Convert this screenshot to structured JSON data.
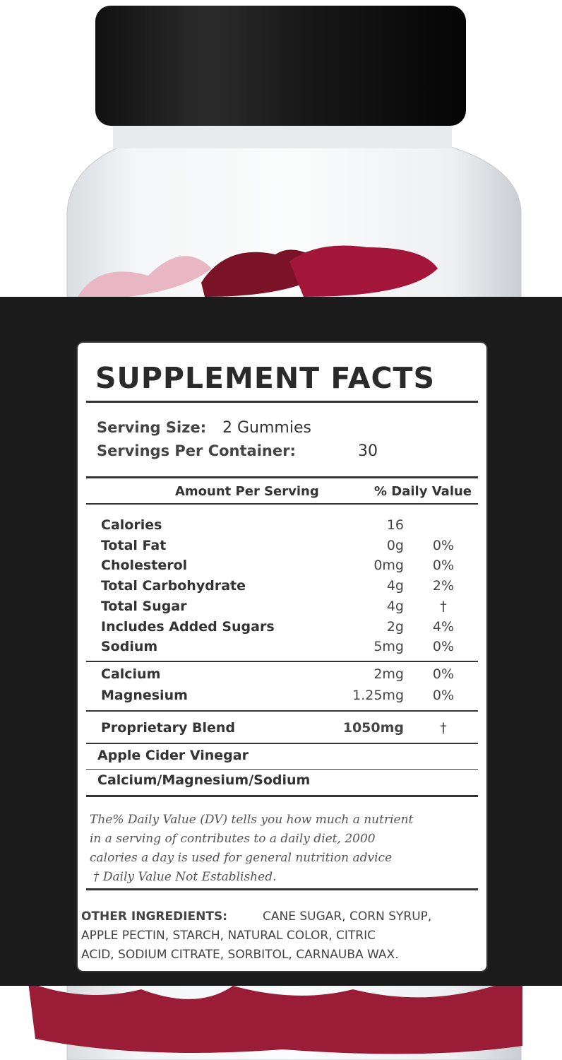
{
  "label": {
    "title": "SUPPLEMENT FACTS",
    "serving_size_label": "Serving Size:",
    "serving_size": "2 Gummies",
    "servings_label": "Servings Per Container:",
    "servings": "30",
    "header_amount": "Amount Per Serving",
    "header_dv": "% Daily Value",
    "rows": [
      [
        "Calories",
        "16",
        null
      ],
      [
        "Total Fat",
        "0g",
        "0%"
      ],
      [
        "Cholesterol",
        "0mg",
        "0%"
      ],
      [
        "Total Carbohydrate",
        "4g",
        "2%"
      ],
      [
        "Total Sugar",
        "4g",
        "†"
      ],
      [
        "Includes Added Sugars",
        "2g",
        "4%"
      ],
      [
        "Sodium",
        "5mg",
        "0%"
      ]
    ],
    "minerals": [
      [
        "Calcium",
        "2mg",
        "0%"
      ],
      [
        "Magnesium",
        "1.25mg",
        "0%"
      ]
    ],
    "blend": [
      "Proprietary Blend",
      "1050mg",
      "†"
    ],
    "blend_items": [
      "Apple Cider Vinegar",
      "Calcium/Magnesium/Sodium"
    ],
    "footnote": [
      "The% Daily Value (DV) tells you how much a nutrient",
      "in a serving of contributes to a daily diet, 2000",
      "calories a day is used for general nutrition advice",
      "† Daily Value Not Established."
    ],
    "other_label": "OTHER INGREDIENTS:",
    "other_lines": [
      "CANE SUGAR, CORN SYRUP,",
      "APPLE PECTIN, STARCH, NATURAL COLOR, CITRIC",
      "ACID, SODIUM CITRATE, SORBITOL, CARNAUBA WAX."
    ]
  }
}
